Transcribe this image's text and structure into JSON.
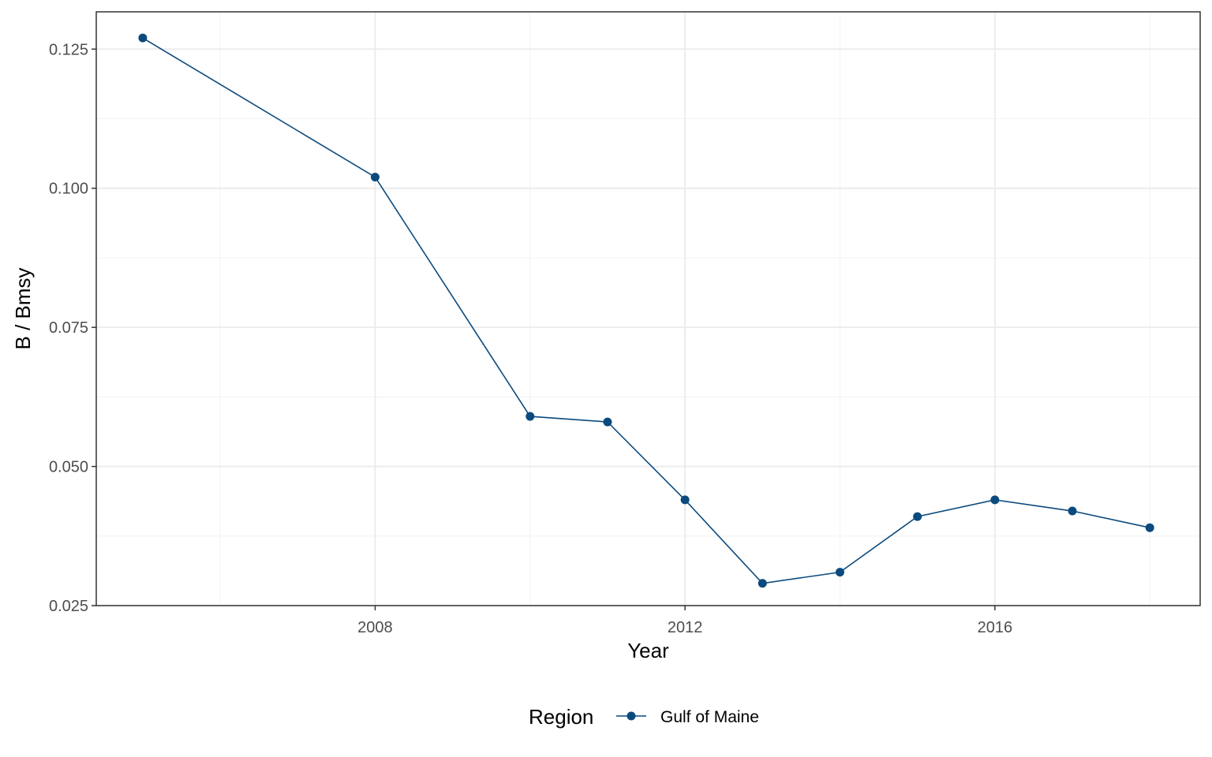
{
  "chart_data": {
    "type": "line",
    "title": "",
    "xlabel": "Year",
    "ylabel": "B / Bmsy",
    "x": [
      2005,
      2008,
      2010,
      2011,
      2012,
      2013,
      2014,
      2015,
      2016,
      2017,
      2018
    ],
    "series": [
      {
        "name": "Gulf of Maine",
        "values": [
          0.127,
          0.102,
          0.059,
          0.058,
          0.044,
          0.029,
          0.031,
          0.041,
          0.044,
          0.042,
          0.039
        ]
      }
    ],
    "xlim": [
      2004.4,
      2018.65
    ],
    "ylim": [
      0.025,
      0.1317
    ],
    "x_ticks": [
      2008,
      2012,
      2016
    ],
    "x_tick_labels": [
      "2008",
      "2012",
      "2016"
    ],
    "y_ticks": [
      0.025,
      0.05,
      0.075,
      0.1,
      0.125
    ],
    "y_tick_labels": [
      "0.025",
      "0.050",
      "0.075",
      "0.100",
      "0.125"
    ],
    "grid": true,
    "legend": {
      "title": "Region",
      "position": "bottom",
      "entries": [
        "Gulf of Maine"
      ]
    },
    "colors": {
      "series": "#0b4a7e",
      "grid_major": "#ebebeb",
      "grid_minor": "#f4f4f4",
      "panel_border": "#333333"
    }
  }
}
